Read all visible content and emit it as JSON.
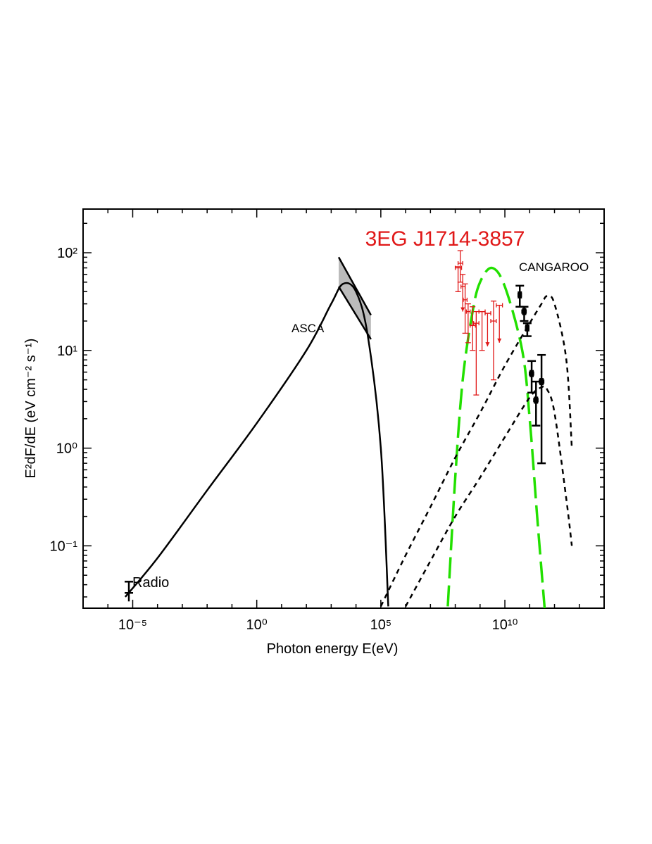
{
  "chart_data": {
    "type": "scatter",
    "title": "3EG J1714-3857",
    "xlabel": "Photon energy  E(eV)",
    "ylabel": "E²dF/dE (eV cm⁻² s⁻¹)",
    "xscale": "log",
    "yscale": "log",
    "xlim": [
      1e-07,
      100000000000000.0
    ],
    "ylim": [
      0.023,
      280
    ],
    "x_ticks": [
      "10⁻⁵",
      "10⁰",
      "10⁵",
      "10¹⁰"
    ],
    "y_ticks": [
      "10⁻¹",
      "10⁰",
      "10¹",
      "10²"
    ],
    "annotations": {
      "radio": "Radio",
      "asca": "ASCA",
      "cangaroo": "CANGAROO"
    },
    "colors": {
      "title": "#e01818",
      "egret": "#e01818",
      "pion": "#22e000",
      "model": "#000000",
      "band": "#bbbbbb"
    },
    "series": [
      {
        "style": "solid-black",
        "x": [
          5e-06,
          0.0001,
          0.01,
          1,
          100.0,
          1000.0,
          3000.0,
          10000.0,
          30000.0,
          100000.0,
          200000.0
        ],
        "y": [
          0.03,
          0.075,
          0.37,
          1.8,
          10,
          30,
          48,
          40,
          14,
          1.0,
          0.024
        ]
      },
      {
        "style": "long-dash-green",
        "x": [
          50000000.0,
          100000000.0,
          200000000.0,
          500000000.0,
          1000000000.0,
          3000000000.0,
          10000000000.0,
          50000000000.0,
          100000000000.0,
          200000000000.0,
          400000000000.0
        ],
        "y": [
          0.024,
          0.5,
          5,
          25,
          50,
          70,
          45,
          10,
          2,
          0.2,
          0.023
        ]
      },
      {
        "style": "short-dash-black",
        "x": [
          100000.0,
          1000000.0,
          10000000.0,
          100000000.0,
          1000000000.0,
          10000000000.0,
          100000000000.0,
          300000000000.0,
          500000000000.0,
          1000000000000.0,
          3000000000000.0,
          5000000000000.0
        ],
        "y": [
          0.024,
          0.08,
          0.25,
          0.8,
          2.3,
          7,
          19,
          30,
          36,
          30,
          8,
          1.0
        ]
      },
      {
        "style": "short-dash-black",
        "x": [
          1000000.0,
          10000000.0,
          100000000.0,
          1000000000.0,
          10000000000.0,
          100000000000.0,
          300000000000.0,
          500000000000.0,
          1000000000000.0,
          3000000000000.0,
          5000000000000.0
        ],
        "y": [
          0.024,
          0.07,
          0.2,
          0.5,
          1.3,
          3.3,
          4.2,
          4.0,
          2.3,
          0.3,
          0.1
        ]
      }
    ],
    "radio_point": {
      "x": 7e-06,
      "y": 0.033,
      "y_low": 0.027,
      "y_high": 0.043
    },
    "asca_band": {
      "x": [
        2000.0,
        40000.0
      ],
      "y_upper": [
        90,
        23
      ],
      "y_lower": [
        45,
        13
      ]
    },
    "egret_points": [
      {
        "x": 130000000.0,
        "xl": 100000000.0,
        "xh": 180000000.0,
        "y": 70,
        "yl": 40,
        "yh": 72,
        "upper_limit": false
      },
      {
        "x": 160000000.0,
        "xl": 130000000.0,
        "xh": 200000000.0,
        "y": 78,
        "yl": 50,
        "yh": 105,
        "upper_limit": false
      },
      {
        "x": 200000000.0,
        "xl": 170000000.0,
        "xh": 250000000.0,
        "y": 45,
        "yl": 25,
        "yh": 60,
        "upper_limit": true
      },
      {
        "x": 250000000.0,
        "xl": 210000000.0,
        "xh": 300000000.0,
        "y": 33,
        "yl": 15,
        "yh": 48,
        "upper_limit": false
      },
      {
        "x": 330000000.0,
        "xl": 280000000.0,
        "xh": 400000000.0,
        "y": 25,
        "yl": 12,
        "yh": 30,
        "upper_limit": false
      },
      {
        "x": 500000000.0,
        "xl": 400000000.0,
        "xh": 650000000.0,
        "y": 18,
        "yl": 10,
        "yh": 28,
        "upper_limit": false
      },
      {
        "x": 700000000.0,
        "xl": 550000000.0,
        "xh": 900000000.0,
        "y": 19,
        "yl": 3.5,
        "yh": 25,
        "upper_limit": false
      },
      {
        "x": 1200000000.0,
        "xl": 900000000.0,
        "xh": 1600000000.0,
        "y": 25,
        "yl": 10,
        "yh": 25,
        "upper_limit": false
      },
      {
        "x": 2000000000.0,
        "xl": 1600000000.0,
        "xh": 2700000000.0,
        "y": 24,
        "yl": 11,
        "yh": 24,
        "upper_limit": true
      },
      {
        "x": 3500000000.0,
        "xl": 2700000000.0,
        "xh": 4500000000.0,
        "y": 20,
        "yl": 5,
        "yh": 32,
        "upper_limit": false
      },
      {
        "x": 6000000000.0,
        "xl": 4500000000.0,
        "xh": 8000000000.0,
        "y": 29,
        "yl": 12,
        "yh": 29,
        "upper_limit": true
      }
    ],
    "cangaroo_points": [
      {
        "x": 40000000000.0,
        "xl": 35000000000.0,
        "xh": 45000000000.0,
        "y": 37,
        "yl": 28,
        "yh": 46
      },
      {
        "x": 60000000000.0,
        "xl": 50000000000.0,
        "xh": 70000000000.0,
        "y": 25,
        "yl": 20,
        "yh": 28
      },
      {
        "x": 80000000000.0,
        "xl": 70000000000.0,
        "xh": 90000000000.0,
        "y": 17,
        "yl": 14,
        "yh": 19
      },
      {
        "x": 120000000000.0,
        "xl": 100000000000.0,
        "xh": 140000000000.0,
        "y": 5.8,
        "yl": 3.7,
        "yh": 7.8
      },
      {
        "x": 180000000000.0,
        "xl": 150000000000.0,
        "xh": 210000000000.0,
        "y": 3.1,
        "yl": 1.7,
        "yh": 4.8
      },
      {
        "x": 300000000000.0,
        "xl": 250000000000.0,
        "xh": 360000000000.0,
        "y": 4.8,
        "yl": 0.7,
        "yh": 9
      }
    ]
  }
}
